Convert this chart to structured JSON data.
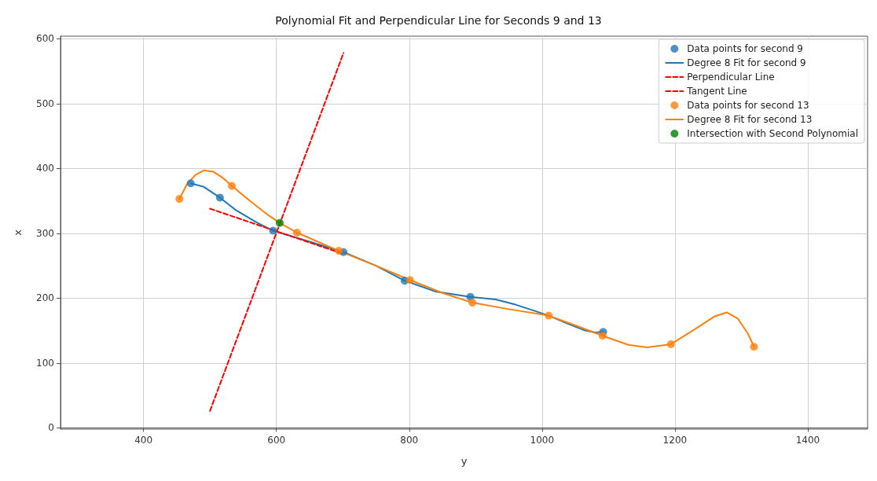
{
  "chart_data": {
    "type": "scatter",
    "title": "Polynomial Fit and Perpendicular Line for Seconds 9 and 13",
    "xlabel": "y",
    "ylabel": "x",
    "xlim": [
      275,
      1490
    ],
    "ylim": [
      -2,
      604
    ],
    "xticks": [
      400,
      600,
      800,
      1000,
      1200,
      1400
    ],
    "yticks": [
      0,
      100,
      200,
      300,
      400,
      500,
      600
    ],
    "grid": true,
    "legend": "top right",
    "series": [
      {
        "name": "Data points for second 9",
        "color": "#1f77b4",
        "marker": "circle",
        "x": [
          471,
          515,
          595,
          701,
          793,
          892,
          1092
        ],
        "values": [
          377,
          355,
          304,
          271,
          227,
          202,
          148
        ]
      },
      {
        "type": "line",
        "name": "Degree 8 Fit for second 9",
        "color": "#1f77b4",
        "marker": "none",
        "line_style": "solid",
        "x": [
          471,
          490,
          515,
          540,
          570,
          595,
          650,
          701,
          750,
          793,
          840,
          892,
          930,
          960,
          990,
          1010,
          1040,
          1065,
          1080,
          1092
        ],
        "values": [
          377,
          372,
          355,
          335,
          317,
          304,
          287,
          271,
          250,
          227,
          210,
          202,
          198,
          190,
          180,
          173,
          160,
          150,
          147,
          148
        ]
      },
      {
        "type": "line",
        "name": "Perpendicular Line",
        "color": "#ff0000",
        "marker": "none",
        "line_style": "dashed",
        "x": [
          500,
          701
        ],
        "values": [
          26,
          578
        ]
      },
      {
        "type": "line",
        "name": "Tangent Line",
        "color": "#ff0000",
        "marker": "none",
        "line_style": "dashed",
        "x": [
          500,
          701
        ],
        "values": [
          338,
          268
        ]
      },
      {
        "name": "Data points for second 13",
        "color": "#ff7f0e",
        "marker": "circle",
        "x": [
          454,
          533,
          631,
          694,
          801,
          895,
          1010,
          1091,
          1194,
          1319
        ],
        "values": [
          353,
          373,
          301,
          273,
          228,
          193,
          173,
          142,
          129,
          125
        ]
      },
      {
        "type": "line",
        "name": "Degree 8 Fit for second 13",
        "color": "#ff7f0e",
        "marker": "none",
        "line_style": "solid",
        "x": [
          454,
          465,
          478,
          491,
          505,
          520,
          533,
          560,
          585,
          605,
          631,
          694,
          750,
          801,
          850,
          895,
          950,
          1010,
          1050,
          1091,
          1130,
          1158,
          1194,
          1230,
          1260,
          1278,
          1295,
          1310,
          1319
        ],
        "values": [
          353,
          375,
          390,
          397,
          395,
          385,
          373,
          350,
          330,
          316,
          301,
          273,
          250,
          228,
          208,
          193,
          183,
          173,
          158,
          142,
          128,
          124,
          129,
          152,
          172,
          178,
          168,
          145,
          125
        ]
      },
      {
        "name": "Intersection with Second Polynomial",
        "color": "#008000",
        "marker": "circle",
        "x": [
          605
        ],
        "values": [
          316
        ]
      }
    ]
  }
}
